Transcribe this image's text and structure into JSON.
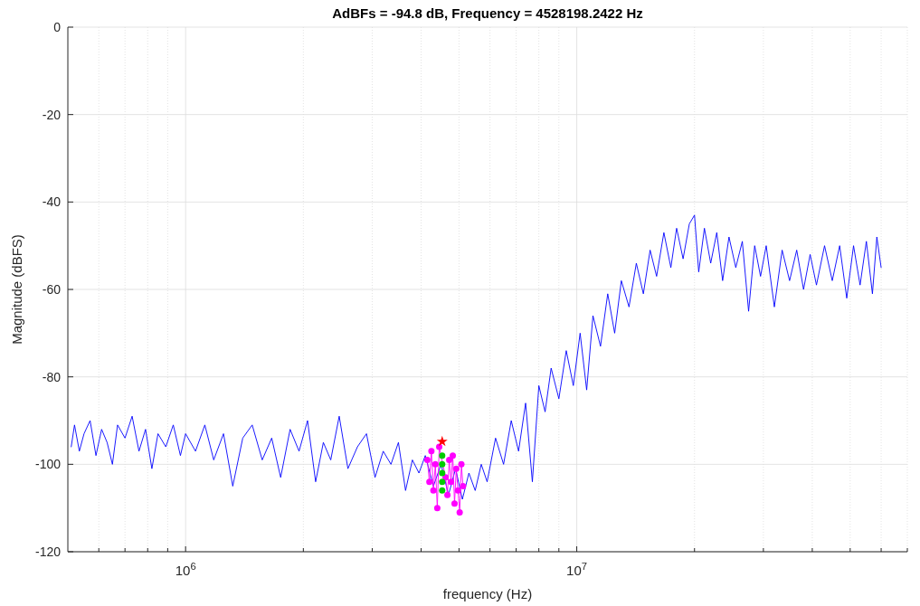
{
  "chart_data": {
    "type": "line",
    "title": "AdBFs = -94.8 dB, Frequency = 4528198.2422 Hz",
    "xlabel": "frequency (Hz)",
    "ylabel": "Magnitude (dBFS)",
    "log": "x",
    "grid": true,
    "xlim": [
      500000,
      70000000
    ],
    "ylim": [
      -120,
      0
    ],
    "yticks": [
      -120,
      -100,
      -80,
      -60,
      -40,
      -20,
      0
    ],
    "xticks": [
      {
        "value": 600000,
        "label": null
      },
      {
        "value": 700000,
        "label": null
      },
      {
        "value": 800000,
        "label": null
      },
      {
        "value": 900000,
        "label": null
      },
      {
        "value": 1000000,
        "label": "10$^{6}$"
      },
      {
        "value": 2000000,
        "label": null
      },
      {
        "value": 3000000,
        "label": null
      },
      {
        "value": 4000000,
        "label": null
      },
      {
        "value": 5000000,
        "label": null
      },
      {
        "value": 6000000,
        "label": null
      },
      {
        "value": 7000000,
        "label": null
      },
      {
        "value": 8000000,
        "label": null
      },
      {
        "value": 9000000,
        "label": null
      },
      {
        "value": 10000000,
        "label": "10$^{7}$"
      },
      {
        "value": 20000000,
        "label": null
      },
      {
        "value": 30000000,
        "label": null
      },
      {
        "value": 40000000,
        "label": null
      },
      {
        "value": 50000000,
        "label": null
      },
      {
        "value": 60000000,
        "label": null
      },
      {
        "value": 70000000,
        "label": null
      }
    ],
    "series": [
      {
        "color": "#0000ff",
        "marker": "none",
        "x": [
          510000,
          520000,
          535000,
          550000,
          570000,
          590000,
          610000,
          630000,
          650000,
          670000,
          700000,
          730000,
          760000,
          790000,
          820000,
          850000,
          890000,
          930000,
          970000,
          1000000,
          1060000,
          1120000,
          1180000,
          1250000,
          1320000,
          1400000,
          1480000,
          1570000,
          1660000,
          1750000,
          1850000,
          1950000,
          2050000,
          2150000,
          2250000,
          2350000,
          2470000,
          2600000,
          2750000,
          2900000,
          3050000,
          3200000,
          3350000,
          3500000,
          3650000,
          3800000,
          3950000,
          4100000,
          4300000,
          4500000,
          4700000,
          4900000,
          5100000,
          5300000,
          5500000,
          5700000,
          5900000,
          6200000,
          6500000,
          6800000,
          7100000,
          7400000,
          7700000,
          8000000,
          8300000,
          8600000,
          9000000,
          9400000,
          9800000,
          10200000,
          10600000,
          11000000,
          11500000,
          12000000,
          12500000,
          13000000,
          13600000,
          14200000,
          14800000,
          15400000,
          16000000,
          16700000,
          17400000,
          18000000,
          18700000,
          19400000,
          20000000,
          20500000,
          21200000,
          22000000,
          22800000,
          23600000,
          24500000,
          25500000,
          26500000,
          27500000,
          28500000,
          29500000,
          30500000,
          32000000,
          33500000,
          35000000,
          36500000,
          38000000,
          39500000,
          41000000,
          43000000,
          45000000,
          47000000,
          49000000,
          51000000,
          53000000,
          55000000,
          57000000,
          58500000,
          60000000
        ],
        "values": [
          -96,
          -91,
          -97,
          -93,
          -90,
          -98,
          -92,
          -95,
          -100,
          -91,
          -94,
          -89,
          -97,
          -92,
          -101,
          -93,
          -96,
          -91,
          -98,
          -93,
          -97,
          -91,
          -99,
          -93,
          -105,
          -94,
          -91,
          -99,
          -94,
          -103,
          -92,
          -97,
          -90,
          -104,
          -95,
          -99,
          -89,
          -101,
          -96,
          -93,
          -103,
          -97,
          -100,
          -95,
          -106,
          -99,
          -102,
          -98,
          -105,
          -100,
          -107,
          -101,
          -108,
          -102,
          -106,
          -100,
          -104,
          -94,
          -100,
          -90,
          -97,
          -86,
          -104,
          -82,
          -88,
          -78,
          -85,
          -74,
          -82,
          -70,
          -83,
          -66,
          -73,
          -61,
          -70,
          -58,
          -64,
          -54,
          -61,
          -51,
          -57,
          -47,
          -55,
          -46,
          -53,
          -45,
          -43,
          -56,
          -46,
          -54,
          -47,
          -58,
          -48,
          -55,
          -49,
          -65,
          -50,
          -57,
          -50,
          -64,
          -51,
          -58,
          -51,
          -60,
          -52,
          -59,
          -50,
          -58,
          -50,
          -62,
          -50,
          -59,
          -49,
          -61,
          -48,
          -55
        ]
      },
      {
        "type": "line",
        "color": "#ff00ff",
        "marker": "circle",
        "x": [
          4150000,
          4200000,
          4250000,
          4300000,
          4350000,
          4400000,
          4450000,
          4620000,
          4670000,
          4720000,
          4770000,
          4820000,
          4870000,
          4920000,
          4970000,
          5020000,
          5070000,
          5120000
        ],
        "values": [
          -99,
          -104,
          -97,
          -106,
          -100,
          -110,
          -96,
          -103,
          -107,
          -99,
          -104,
          -98,
          -109,
          -101,
          -106,
          -111,
          -100,
          -105
        ]
      },
      {
        "type": "scatter",
        "color": "#00cc00",
        "marker": "circle",
        "x": [
          4528198.2422,
          4528198.2422,
          4528198.2422,
          4528198.2422,
          4528198.2422
        ],
        "values": [
          -98,
          -100,
          -102,
          -104,
          -106
        ]
      },
      {
        "type": "scatter",
        "color": "#ff0000",
        "marker": "star",
        "x": [
          4528198.2422
        ],
        "values": [
          -94.8
        ]
      }
    ]
  }
}
